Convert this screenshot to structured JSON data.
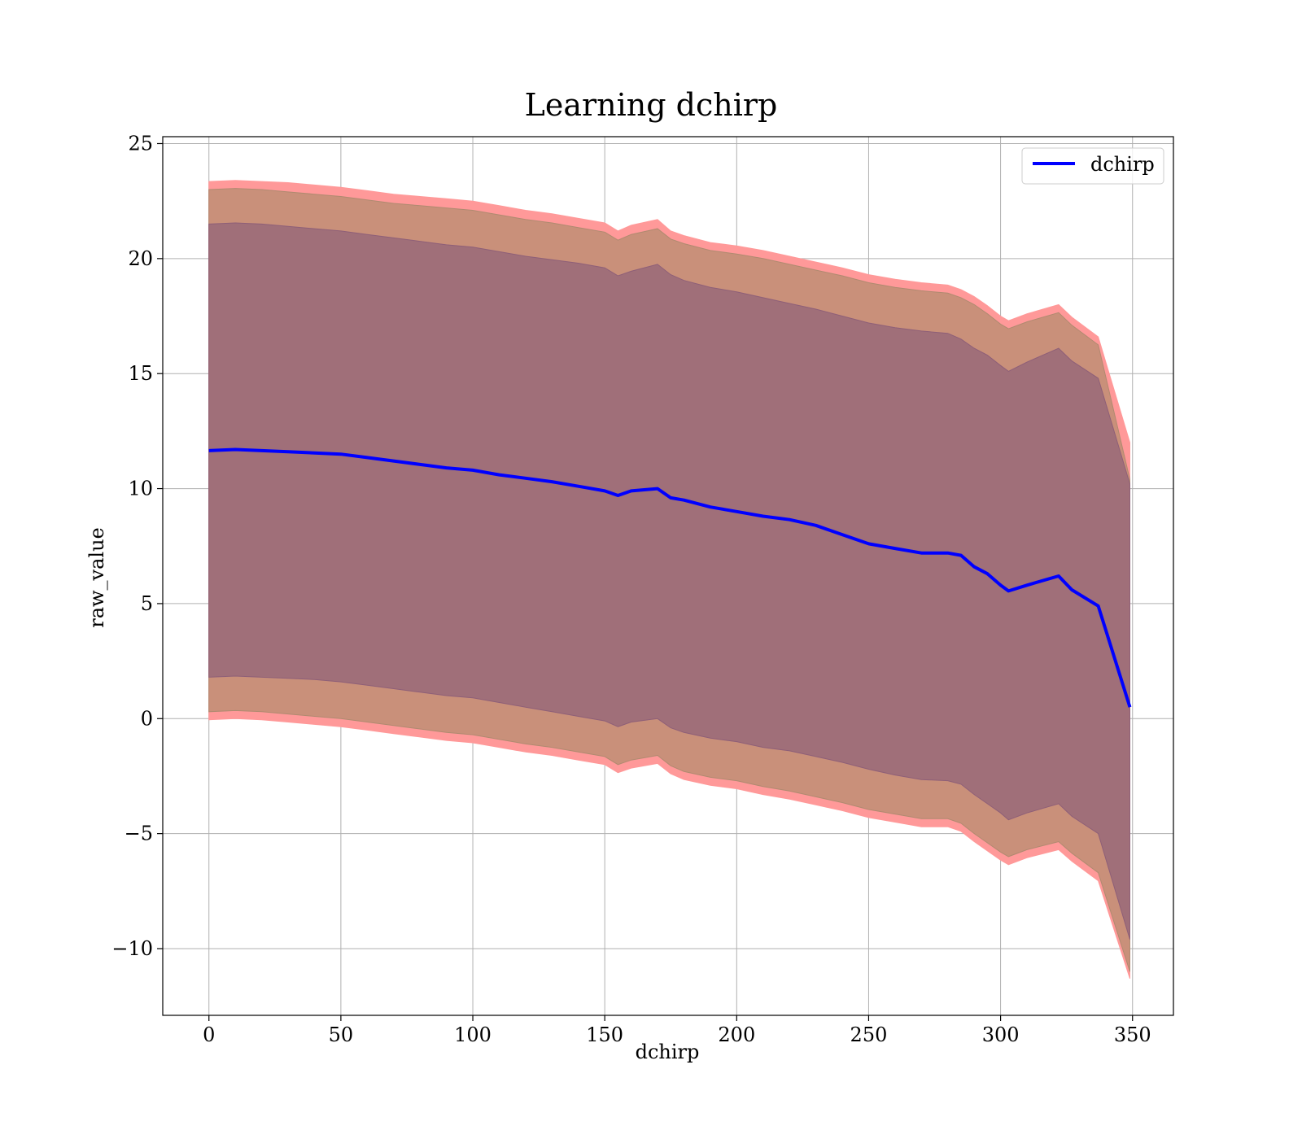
{
  "chart_data": {
    "type": "line",
    "title": "Learning dchirp",
    "xlabel": "dchirp",
    "ylabel": "raw_value",
    "xlim": [
      -17.5,
      365.5
    ],
    "ylim": [
      -12.9,
      25.3
    ],
    "x_ticks": [
      0,
      50,
      100,
      150,
      200,
      250,
      300,
      350
    ],
    "x_tick_labels": [
      "0",
      "50",
      "100",
      "150",
      "200",
      "250",
      "300",
      "350"
    ],
    "y_ticks": [
      -10,
      -5,
      0,
      5,
      10,
      15,
      20,
      25
    ],
    "y_tick_labels": [
      "−10",
      "−5",
      "0",
      "5",
      "10",
      "15",
      "20",
      "25"
    ],
    "grid": true,
    "legend_position": "top-right",
    "colors": {
      "line": "#0000ff",
      "outer_band": "#ff9999",
      "middle_band": "#c9907a",
      "inner_band": "#a06f79",
      "grid": "#b0b0b0"
    },
    "series": [
      {
        "name": "dchirp",
        "x": [
          0,
          10,
          20,
          30,
          40,
          50,
          60,
          70,
          80,
          90,
          100,
          110,
          120,
          130,
          140,
          150,
          155,
          160,
          170,
          175,
          180,
          190,
          200,
          210,
          220,
          230,
          240,
          250,
          260,
          270,
          280,
          285,
          290,
          295,
          300,
          303,
          310,
          322,
          327,
          337,
          349
        ],
        "values": [
          11.65,
          11.7,
          11.65,
          11.6,
          11.55,
          11.5,
          11.35,
          11.2,
          11.05,
          10.9,
          10.8,
          10.6,
          10.45,
          10.3,
          10.1,
          9.9,
          9.7,
          9.9,
          10.0,
          9.6,
          9.5,
          9.2,
          9.0,
          8.8,
          8.65,
          8.4,
          8.0,
          7.6,
          7.4,
          7.2,
          7.2,
          7.1,
          6.6,
          6.3,
          5.8,
          5.55,
          5.8,
          6.2,
          5.6,
          4.9,
          0.5
        ]
      }
    ],
    "bands": {
      "x": [
        0,
        10,
        20,
        30,
        40,
        50,
        60,
        70,
        80,
        90,
        100,
        110,
        120,
        130,
        140,
        150,
        155,
        160,
        170,
        175,
        180,
        190,
        200,
        210,
        220,
        230,
        240,
        250,
        260,
        270,
        280,
        285,
        290,
        295,
        300,
        303,
        310,
        322,
        327,
        337,
        349
      ],
      "outer_upper": [
        23.35,
        23.4,
        23.35,
        23.3,
        23.2,
        23.1,
        22.95,
        22.8,
        22.7,
        22.6,
        22.5,
        22.3,
        22.1,
        21.95,
        21.75,
        21.55,
        21.2,
        21.45,
        21.7,
        21.2,
        21.0,
        20.7,
        20.55,
        20.35,
        20.1,
        19.85,
        19.6,
        19.3,
        19.1,
        18.95,
        18.85,
        18.65,
        18.35,
        17.95,
        17.5,
        17.3,
        17.6,
        18.0,
        17.45,
        16.6,
        12.0
      ],
      "middle_upper": [
        23.0,
        23.05,
        23.0,
        22.9,
        22.8,
        22.7,
        22.55,
        22.4,
        22.3,
        22.2,
        22.1,
        21.9,
        21.7,
        21.55,
        21.35,
        21.15,
        20.8,
        21.05,
        21.3,
        20.85,
        20.65,
        20.35,
        20.2,
        20.0,
        19.75,
        19.5,
        19.25,
        18.95,
        18.75,
        18.6,
        18.5,
        18.3,
        18.0,
        17.6,
        17.15,
        16.95,
        17.25,
        17.65,
        17.1,
        16.25,
        10.4
      ],
      "inner_upper": [
        21.5,
        21.55,
        21.5,
        21.4,
        21.3,
        21.2,
        21.05,
        20.9,
        20.75,
        20.6,
        20.5,
        20.3,
        20.1,
        19.95,
        19.8,
        19.6,
        19.25,
        19.45,
        19.75,
        19.3,
        19.05,
        18.75,
        18.55,
        18.3,
        18.05,
        17.8,
        17.5,
        17.2,
        17.0,
        16.85,
        16.75,
        16.5,
        16.1,
        15.8,
        15.35,
        15.1,
        15.5,
        16.1,
        15.55,
        14.8,
        10.2
      ],
      "inner_lower": [
        1.8,
        1.85,
        1.8,
        1.75,
        1.7,
        1.6,
        1.45,
        1.3,
        1.15,
        1.0,
        0.9,
        0.7,
        0.5,
        0.3,
        0.1,
        -0.1,
        -0.35,
        -0.15,
        0.0,
        -0.4,
        -0.6,
        -0.85,
        -1.0,
        -1.25,
        -1.4,
        -1.65,
        -1.9,
        -2.2,
        -2.45,
        -2.65,
        -2.7,
        -2.85,
        -3.3,
        -3.7,
        -4.1,
        -4.4,
        -4.1,
        -3.7,
        -4.25,
        -5.0,
        -9.6
      ],
      "middle_lower": [
        0.3,
        0.35,
        0.3,
        0.2,
        0.1,
        0.0,
        -0.15,
        -0.3,
        -0.45,
        -0.6,
        -0.7,
        -0.9,
        -1.1,
        -1.25,
        -1.45,
        -1.65,
        -2.0,
        -1.8,
        -1.6,
        -2.05,
        -2.3,
        -2.55,
        -2.7,
        -2.95,
        -3.15,
        -3.4,
        -3.65,
        -3.95,
        -4.15,
        -4.35,
        -4.35,
        -4.55,
        -5.0,
        -5.4,
        -5.8,
        -6.0,
        -5.7,
        -5.35,
        -5.85,
        -6.7,
        -11.0
      ],
      "outer_lower": [
        -0.05,
        0.0,
        -0.05,
        -0.15,
        -0.25,
        -0.35,
        -0.5,
        -0.65,
        -0.8,
        -0.95,
        -1.05,
        -1.25,
        -1.45,
        -1.6,
        -1.8,
        -2.0,
        -2.35,
        -2.15,
        -1.95,
        -2.4,
        -2.65,
        -2.9,
        -3.05,
        -3.3,
        -3.5,
        -3.75,
        -4.0,
        -4.3,
        -4.5,
        -4.7,
        -4.7,
        -4.9,
        -5.35,
        -5.75,
        -6.15,
        -6.35,
        -6.05,
        -5.7,
        -6.2,
        -7.05,
        -11.3
      ]
    }
  }
}
